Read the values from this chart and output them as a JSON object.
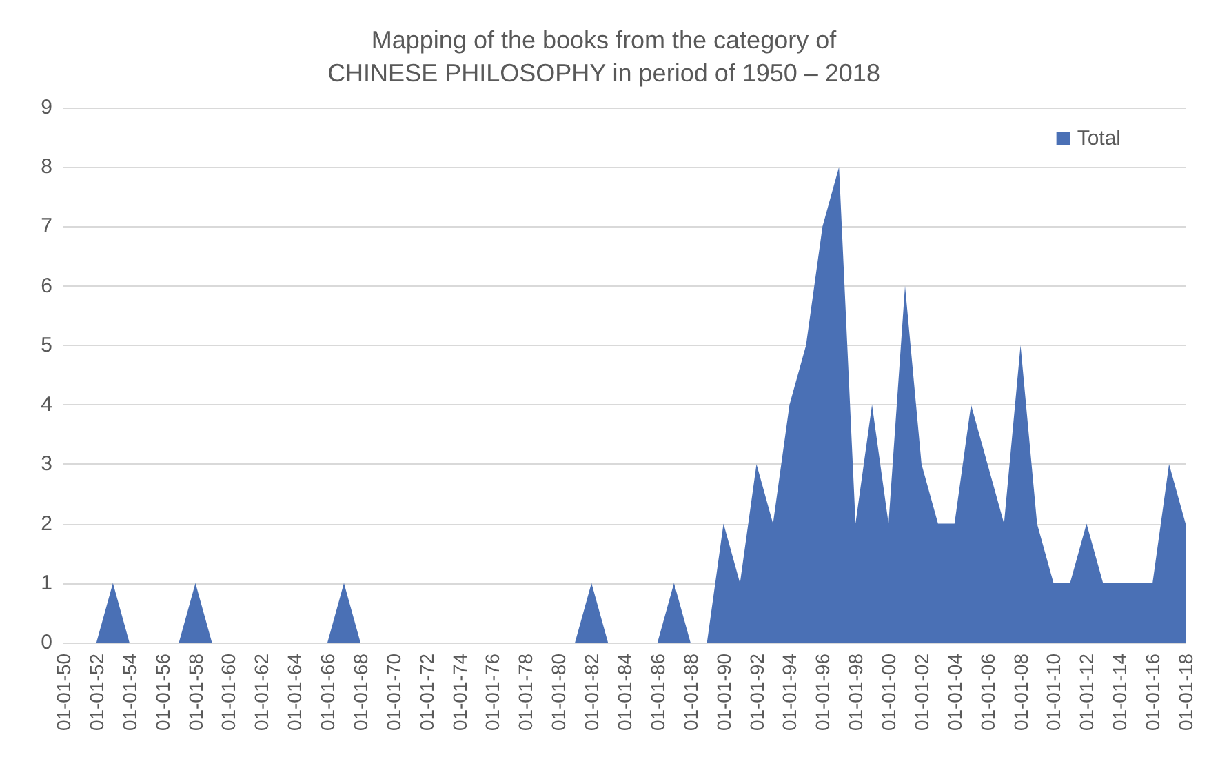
{
  "chart_data": {
    "type": "area",
    "title": "Mapping of the books from the category of\nCHINESE PHILOSOPHY in period of 1950 – 2018",
    "categories": [
      "01-01-50",
      null,
      "01-01-52",
      null,
      "01-01-54",
      null,
      "01-01-56",
      null,
      "01-01-58",
      null,
      "01-01-60",
      null,
      "01-01-62",
      null,
      "01-01-64",
      null,
      "01-01-66",
      null,
      "01-01-68",
      null,
      "01-01-70",
      null,
      "01-01-72",
      null,
      "01-01-74",
      null,
      "01-01-76",
      null,
      "01-01-78",
      null,
      "01-01-80",
      null,
      "01-01-82",
      null,
      "01-01-84",
      null,
      "01-01-86",
      null,
      "01-01-88",
      null,
      "01-01-90",
      null,
      "01-01-92",
      null,
      "01-01-94",
      null,
      "01-01-96",
      null,
      "01-01-98",
      null,
      "01-01-00",
      null,
      "01-01-02",
      null,
      "01-01-04",
      null,
      "01-01-06",
      null,
      "01-01-08",
      null,
      "01-01-10",
      null,
      "01-01-12",
      null,
      "01-01-14",
      null,
      "01-01-16",
      null,
      "01-01-18"
    ],
    "series": [
      {
        "name": "Total",
        "color": "#4a70b5",
        "values": [
          0,
          0,
          0,
          1,
          0,
          0,
          0,
          0,
          1,
          0,
          0,
          0,
          0,
          0,
          0,
          0,
          0,
          1,
          0,
          0,
          0,
          0,
          0,
          0,
          0,
          0,
          0,
          0,
          0,
          0,
          0,
          0,
          1,
          0,
          0,
          0,
          0,
          1,
          0,
          0,
          2,
          1,
          3,
          2,
          4,
          5,
          7,
          8,
          2,
          4,
          2,
          6,
          3,
          2,
          2,
          4,
          3,
          2,
          5,
          2,
          1,
          1,
          2,
          1,
          1,
          1,
          1,
          3,
          2
        ]
      }
    ],
    "ylim": [
      0,
      9
    ],
    "yticks": [
      0,
      1,
      2,
      3,
      4,
      5,
      6,
      7,
      8,
      9
    ],
    "grid": "y",
    "legend": "top right"
  }
}
